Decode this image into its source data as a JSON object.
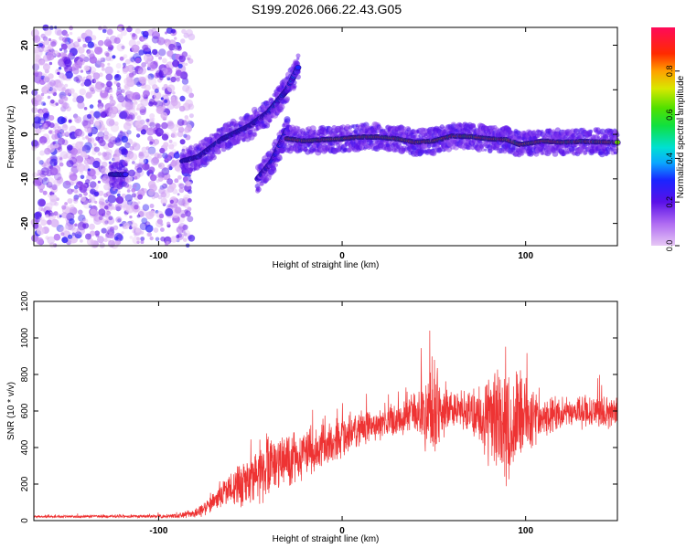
{
  "title": "S199.2026.066.22.43.G05",
  "chart_data": [
    {
      "type": "heatmap",
      "name": "spectrogram",
      "xlabel": "Height of straight line (km)",
      "ylabel": "Frequency (Hz)",
      "xlim": [
        -168,
        150
      ],
      "ylim": [
        -25,
        24
      ],
      "xticks": [
        -100,
        0,
        100
      ],
      "yticks": [
        -20,
        -10,
        0,
        10,
        20
      ],
      "colorbar": {
        "label": "Normalized spectral amplitude",
        "range": [
          0,
          1
        ],
        "ticks": [
          0.0,
          0.2,
          0.4,
          0.6,
          0.8
        ]
      },
      "traces": [
        {
          "label": "noise",
          "x": [
            -168,
            -82
          ],
          "freq_span": [
            -25,
            24
          ],
          "amplitude": 0.15
        },
        {
          "label": "fringe",
          "x": [
            -126,
            -118
          ],
          "freq": [
            -9,
            -9
          ],
          "amplitude": 0.4
        },
        {
          "label": "branch-a",
          "x": [
            -87,
            -78,
            -65,
            -50,
            -40,
            -30,
            -24
          ],
          "freq": [
            -6,
            -5,
            -1,
            2,
            5,
            10,
            15
          ],
          "amplitude": 0.35
        },
        {
          "label": "branch-b",
          "x": [
            -46,
            -38,
            -30
          ],
          "freq": [
            -10,
            -6,
            1
          ],
          "amplitude": 0.3
        },
        {
          "label": "main",
          "x": [
            -30,
            -20,
            -10,
            0,
            10,
            20,
            30,
            40,
            50,
            60,
            70,
            80,
            90,
            97,
            110,
            120,
            130,
            140,
            150
          ],
          "freq": [
            -1,
            -1.5,
            -1.2,
            -1,
            -0.6,
            -0.6,
            -1,
            -1.8,
            -1.5,
            -0.4,
            -0.5,
            -1,
            -1.2,
            -2.3,
            -1.5,
            -1.8,
            -1.6,
            -1.7,
            -1.8
          ],
          "amplitude": 0.9
        }
      ]
    },
    {
      "type": "line",
      "name": "snr",
      "xlabel": "Height of straight line (km)",
      "ylabel": "SNR (10 * v/v)",
      "xlim": [
        -168,
        150
      ],
      "ylim": [
        0,
        1200
      ],
      "xticks": [
        -100,
        0,
        100
      ],
      "yticks": [
        0,
        200,
        400,
        600,
        800,
        1000,
        1200
      ],
      "color": "#ee3333",
      "x": [
        -168,
        -150,
        -130,
        -110,
        -100,
        -90,
        -80,
        -75,
        -70,
        -60,
        -50,
        -45,
        -40,
        -30,
        -20,
        -10,
        0,
        10,
        20,
        30,
        40,
        50,
        60,
        70,
        80,
        90,
        100,
        110,
        120,
        130,
        140,
        150
      ],
      "y": [
        22,
        22,
        24,
        23,
        24,
        26,
        40,
        70,
        110,
        170,
        230,
        270,
        300,
        330,
        370,
        410,
        455,
        500,
        530,
        555,
        590,
        600,
        610,
        605,
        560,
        555,
        560,
        575,
        585,
        590,
        595,
        590
      ],
      "spread": [
        5,
        6,
        8,
        8,
        8,
        10,
        20,
        35,
        55,
        90,
        120,
        130,
        140,
        120,
        120,
        110,
        90,
        80,
        70,
        70,
        90,
        250,
        70,
        100,
        200,
        320,
        180,
        90,
        70,
        70,
        80,
        70
      ],
      "peak_max": 1200
    }
  ]
}
